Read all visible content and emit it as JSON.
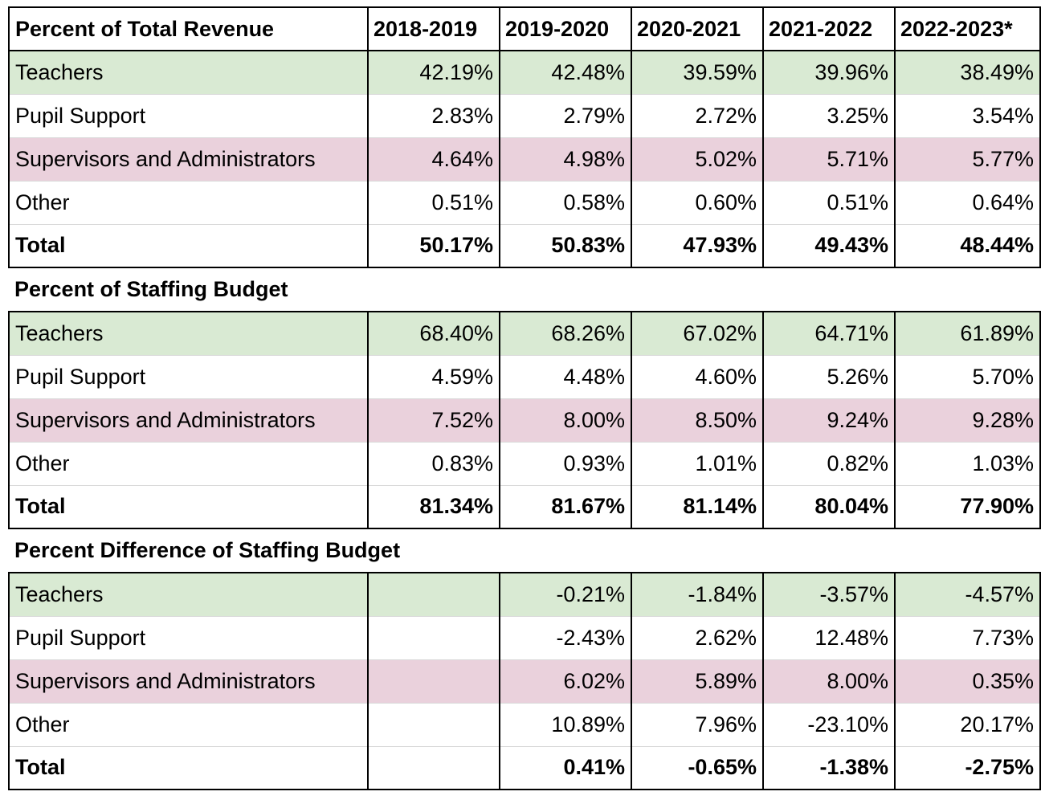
{
  "header": {
    "title": "Percent of Total Revenue",
    "years": [
      "2018-2019",
      "2019-2020",
      "2020-2021",
      "2021-2022",
      "2022-2023*"
    ]
  },
  "sections": [
    {
      "title": "Percent of Total Revenue",
      "rows": [
        {
          "label": "Teachers",
          "values": [
            "42.19%",
            "42.48%",
            "39.59%",
            "39.96%",
            "38.49%"
          ]
        },
        {
          "label": "Pupil Support",
          "values": [
            "2.83%",
            "2.79%",
            "2.72%",
            "3.25%",
            "3.54%"
          ]
        },
        {
          "label": "Supervisors and Administrators",
          "values": [
            "4.64%",
            "4.98%",
            "5.02%",
            "5.71%",
            "5.77%"
          ]
        },
        {
          "label": "Other",
          "values": [
            "0.51%",
            "0.58%",
            "0.60%",
            "0.51%",
            "0.64%"
          ]
        },
        {
          "label": "Total",
          "values": [
            "50.17%",
            "50.83%",
            "47.93%",
            "49.43%",
            "48.44%"
          ]
        }
      ]
    },
    {
      "title": "Percent of Staffing Budget",
      "rows": [
        {
          "label": "Teachers",
          "values": [
            "68.40%",
            "68.26%",
            "67.02%",
            "64.71%",
            "61.89%"
          ]
        },
        {
          "label": "Pupil Support",
          "values": [
            "4.59%",
            "4.48%",
            "4.60%",
            "5.26%",
            "5.70%"
          ]
        },
        {
          "label": "Supervisors and Administrators",
          "values": [
            "7.52%",
            "8.00%",
            "8.50%",
            "9.24%",
            "9.28%"
          ]
        },
        {
          "label": "Other",
          "values": [
            "0.83%",
            "0.93%",
            "1.01%",
            "0.82%",
            "1.03%"
          ]
        },
        {
          "label": "Total",
          "values": [
            "81.34%",
            "81.67%",
            "81.14%",
            "80.04%",
            "77.90%"
          ]
        }
      ]
    },
    {
      "title": "Percent Difference of Staffing Budget",
      "rows": [
        {
          "label": "Teachers",
          "values": [
            "",
            "-0.21%",
            "-1.84%",
            "-3.57%",
            "-4.57%"
          ]
        },
        {
          "label": "Pupil Support",
          "values": [
            "",
            "-2.43%",
            "2.62%",
            "12.48%",
            "7.73%"
          ]
        },
        {
          "label": "Supervisors and Administrators",
          "values": [
            "",
            "6.02%",
            "5.89%",
            "8.00%",
            "0.35%"
          ]
        },
        {
          "label": "Other",
          "values": [
            "",
            "10.89%",
            "7.96%",
            "-23.10%",
            "20.17%"
          ]
        },
        {
          "label": "Total",
          "values": [
            "",
            "0.41%",
            "-0.65%",
            "-1.38%",
            "-2.75%"
          ]
        }
      ]
    }
  ],
  "colors": {
    "teachers_row": "#d9ead3",
    "supervisors_row": "#ead1dc",
    "gridline": "#d9d9d9",
    "border": "#000000"
  }
}
